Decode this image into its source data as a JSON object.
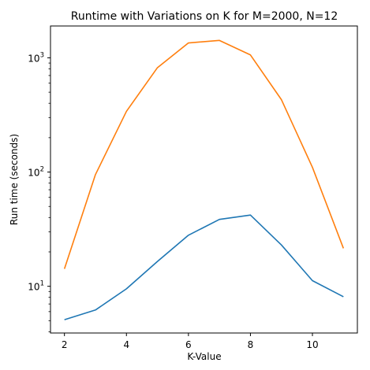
{
  "chart_data": {
    "type": "line",
    "title": "Runtime with Variations on K for M=2000, N=12",
    "xlabel": "K-Value",
    "ylabel": "Run time (seconds)",
    "xscale": "linear",
    "yscale": "log",
    "xlim": [
      1.55,
      11.45
    ],
    "ylim": [
      3.9,
      1900
    ],
    "grid": false,
    "legend": "none",
    "x_ticks": [
      2,
      4,
      6,
      8,
      10
    ],
    "y_ticks": [
      {
        "value": 10,
        "label": "10",
        "exp": "1"
      },
      {
        "value": 100,
        "label": "10",
        "exp": "2"
      },
      {
        "value": 1000,
        "label": "10",
        "exp": "3"
      }
    ],
    "x": [
      2,
      3,
      4,
      5,
      6,
      7,
      8,
      9,
      10,
      11
    ],
    "series": [
      {
        "color": "#1f77b4",
        "values": [
          5.1,
          6.2,
          9.5,
          16.5,
          28.0,
          38.5,
          42.0,
          23.0,
          11.2,
          8.1
        ]
      },
      {
        "color": "#ff7f0e",
        "values": [
          14.2,
          95.0,
          340.0,
          820.0,
          1350.0,
          1420.0,
          1060.0,
          430.0,
          110.0,
          21.5
        ]
      }
    ]
  }
}
